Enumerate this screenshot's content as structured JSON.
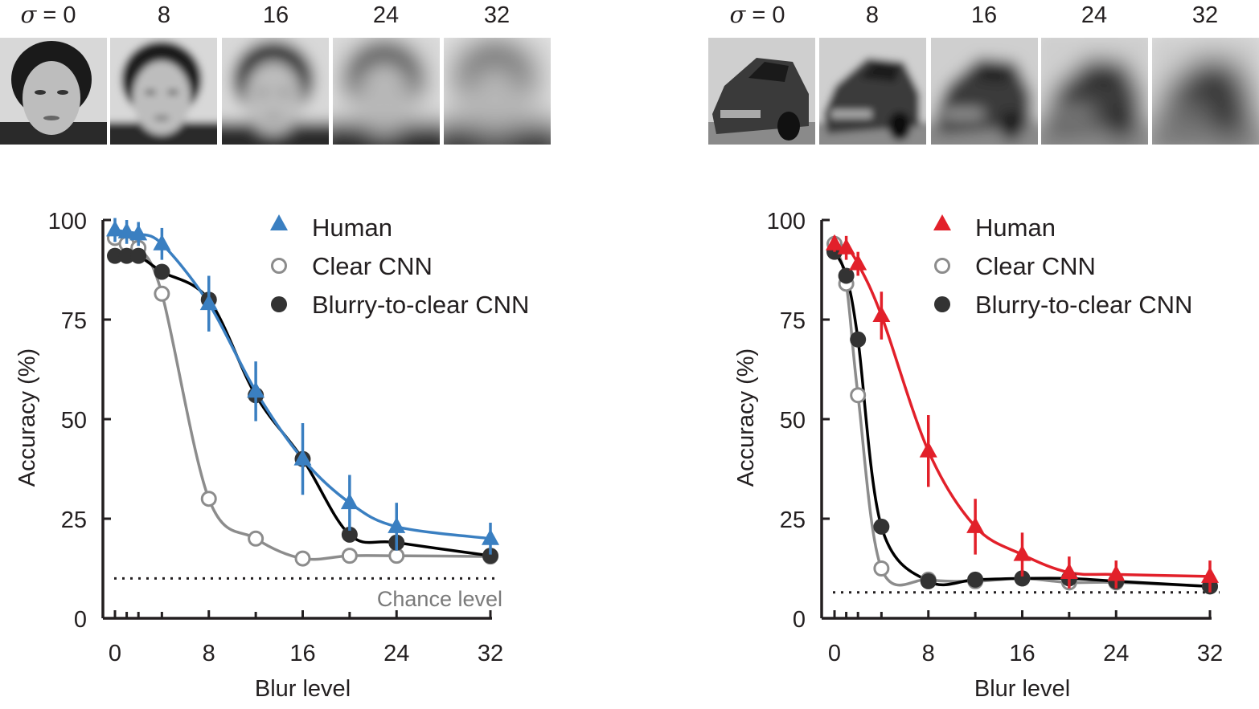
{
  "blur_strips": [
    {
      "subject": "face",
      "labels": [
        "σ = 0",
        "8",
        "16",
        "24",
        "32"
      ],
      "sigmas": [
        0,
        8,
        16,
        24,
        32
      ]
    },
    {
      "subject": "car",
      "labels": [
        "σ = 0",
        "8",
        "16",
        "24",
        "32"
      ],
      "sigmas": [
        0,
        8,
        16,
        24,
        32
      ]
    }
  ],
  "chart_data": [
    {
      "type": "line",
      "xlabel": "Blur level",
      "ylabel": "Accuracy (%)",
      "xlim": [
        0,
        32
      ],
      "ylim": [
        0,
        100
      ],
      "xticks": [
        0,
        8,
        16,
        24,
        32
      ],
      "minor_xticks": [
        1,
        2,
        4,
        12,
        20
      ],
      "yticks": [
        0,
        25,
        50,
        75,
        100
      ],
      "legend_position": "top-right",
      "x": [
        0,
        1,
        2,
        4,
        8,
        12,
        16,
        20,
        24,
        32
      ],
      "series": [
        {
          "name": "Human",
          "marker": "triangle",
          "color": "#3a7fc1",
          "values": [
            97.5,
            97,
            96.5,
            94,
            79,
            57,
            40,
            29,
            23,
            20
          ],
          "error": [
            3,
            3,
            3,
            4,
            7,
            7.5,
            9,
            7,
            6,
            4
          ]
        },
        {
          "name": "Clear CNN",
          "marker": "open-circle",
          "color": "#8c8c8c",
          "values": [
            95.5,
            94,
            93,
            81.5,
            30,
            20,
            15,
            15.7,
            15.7,
            15.5
          ]
        },
        {
          "name": "Blurry-to-clear CNN",
          "marker": "filled-circle",
          "color": "#333333",
          "values": [
            91,
            91,
            91,
            87,
            80,
            56,
            40,
            21,
            19,
            15.7
          ]
        }
      ],
      "chance_level": {
        "label": "Chance level",
        "value": 10
      }
    },
    {
      "type": "line",
      "xlabel": "Blur level",
      "ylabel": "Accuracy (%)",
      "xlim": [
        0,
        32
      ],
      "ylim": [
        0,
        100
      ],
      "xticks": [
        0,
        8,
        16,
        24,
        32
      ],
      "minor_xticks": [
        1,
        2,
        4,
        12,
        20
      ],
      "yticks": [
        0,
        25,
        50,
        75,
        100
      ],
      "legend_position": "top-right",
      "x": [
        0,
        1,
        2,
        4,
        8,
        12,
        16,
        20,
        24,
        32
      ],
      "series": [
        {
          "name": "Human",
          "marker": "triangle",
          "color": "#e2202a",
          "values": [
            94,
            93,
            89,
            76,
            42,
            23,
            16,
            11.5,
            11,
            10.5
          ],
          "error": [
            2,
            3,
            3,
            6,
            9,
            7,
            5.5,
            4,
            3.5,
            4
          ]
        },
        {
          "name": "Clear CNN",
          "marker": "open-circle",
          "color": "#8c8c8c",
          "values": [
            94,
            84,
            56,
            12.5,
            9.7,
            9.3,
            10,
            9,
            9,
            8
          ]
        },
        {
          "name": "Blurry-to-clear CNN",
          "marker": "filled-circle",
          "color": "#333333",
          "values": [
            92,
            86,
            70,
            23,
            9.3,
            9.7,
            10,
            10,
            9.3,
            8
          ]
        }
      ],
      "chance_level": {
        "value": 6.5
      }
    }
  ]
}
